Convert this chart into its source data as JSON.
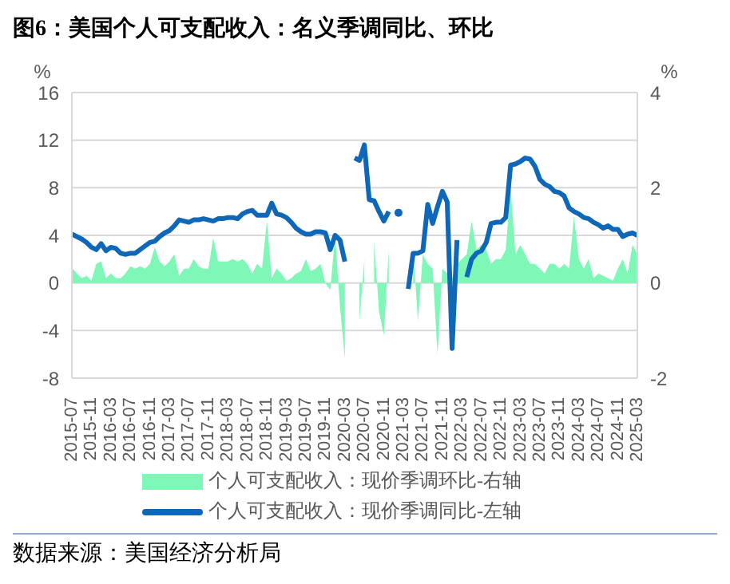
{
  "chart_data": {
    "type": "line",
    "title": "图6：美国个人可支配收入：名义季调同比、环比",
    "ylabel": "%",
    "y2label": "%",
    "categories": [
      "2015-07",
      null,
      null,
      null,
      "2015-11",
      null,
      null,
      null,
      "2016-03",
      null,
      null,
      null,
      "2016-07",
      null,
      null,
      null,
      "2016-11",
      null,
      null,
      null,
      "2017-03",
      null,
      null,
      null,
      "2017-07",
      null,
      null,
      null,
      "2017-11",
      null,
      null,
      null,
      "2018-03",
      null,
      null,
      null,
      "2018-07",
      null,
      null,
      null,
      "2018-11",
      null,
      null,
      null,
      "2019-03",
      null,
      null,
      null,
      "2019-07",
      null,
      null,
      null,
      "2019-11",
      null,
      null,
      null,
      "2020-03",
      null,
      null,
      null,
      "2020-07",
      null,
      null,
      null,
      "2020-11",
      null,
      null,
      null,
      "2021-03",
      null,
      null,
      null,
      "2021-07",
      null,
      null,
      null,
      "2021-11",
      null,
      null,
      null,
      "2022-03",
      null,
      null,
      null,
      "2022-07",
      null,
      null,
      null,
      "2022-11",
      null,
      null,
      null,
      "2023-03",
      null,
      null,
      null,
      "2023-07",
      null,
      null,
      null,
      "2023-11",
      null,
      null,
      null,
      "2024-03",
      null,
      null,
      null,
      "2024-07",
      null,
      null,
      null,
      "2024-11",
      null,
      null,
      null,
      "2025-03"
    ],
    "series": [
      {
        "name": "个人可支配收入：现价季调环比-右轴",
        "type": "area",
        "axis": "y2",
        "color": "#7ff7b6",
        "values": [
          0.32,
          0.2,
          0.1,
          0.15,
          0.05,
          0.4,
          0.45,
          0.1,
          0.2,
          0.1,
          0.1,
          0.2,
          0.35,
          0.3,
          0.35,
          0.3,
          0.4,
          0.75,
          0.45,
          0.35,
          0.45,
          0.6,
          0.15,
          0.3,
          0.3,
          0.5,
          0.35,
          0.3,
          0.3,
          0.95,
          0.45,
          0.45,
          0.45,
          0.5,
          0.45,
          0.5,
          0.4,
          0.2,
          0.4,
          0.3,
          1.3,
          0.1,
          0.3,
          0.2,
          0.05,
          0.1,
          0.2,
          0.25,
          0.5,
          0.25,
          0.3,
          0.4,
          0.0,
          -0.15,
          1.0,
          -0.5,
          -1.6,
          null,
          null,
          -0.8,
          0.5,
          null,
          0.9,
          -0.6,
          -1.1,
          0.7,
          null,
          null,
          null,
          null,
          0.7,
          -0.8,
          0.6,
          0.4,
          0.3,
          -1.5,
          0.3,
          0.2,
          0.1,
          0.4,
          0.5,
          0.6,
          1.3,
          0.7,
          0.8,
          0.7,
          0.4,
          0.5,
          0.5,
          0.7,
          2.0,
          0.6,
          0.8,
          0.6,
          0.4,
          0.4,
          0.3,
          0.2,
          0.4,
          0.4,
          0.3,
          0.4,
          0.3,
          1.4,
          0.5,
          0.3,
          0.5,
          0.1,
          0.2,
          0.15,
          0.1,
          0.05,
          0.3,
          0.5,
          0.2,
          0.8,
          0.6
        ]
      },
      {
        "name": "个人可支配收入：现价季调同比-左轴",
        "axis": "y",
        "color": "#0f67b8",
        "values": [
          4.1,
          3.9,
          3.7,
          3.4,
          3.0,
          2.8,
          3.3,
          2.7,
          3.0,
          2.9,
          2.5,
          2.4,
          2.5,
          2.5,
          2.8,
          3.1,
          3.4,
          3.5,
          3.9,
          4.2,
          4.4,
          4.8,
          5.3,
          5.2,
          5.1,
          5.3,
          5.3,
          5.4,
          5.3,
          5.2,
          5.4,
          5.4,
          5.5,
          5.5,
          5.4,
          5.8,
          6.0,
          6.1,
          5.7,
          5.7,
          5.7,
          6.7,
          5.8,
          5.7,
          5.5,
          5.1,
          4.6,
          4.3,
          4.1,
          4.1,
          4.3,
          4.3,
          4.2,
          2.8,
          4.0,
          3.6,
          1.8,
          null,
          10.5,
          10.3,
          11.6,
          7.0,
          6.9,
          6.0,
          5.2,
          6.0,
          null,
          5.9,
          null,
          -0.5,
          2.5,
          2.5,
          2.7,
          6.6,
          5.0,
          6.4,
          7.7,
          6.8,
          -5.5,
          3.6,
          null,
          0.5,
          2.0,
          2.5,
          2.7,
          3.4,
          5.0,
          5.1,
          5.1,
          5.5,
          9.9,
          10.0,
          10.2,
          10.5,
          10.4,
          9.8,
          8.7,
          8.3,
          8.1,
          7.7,
          7.6,
          7.3,
          6.3,
          6.0,
          5.8,
          5.5,
          5.4,
          5.1,
          4.9,
          4.6,
          4.8,
          4.5,
          4.5,
          3.9,
          4.1,
          4.2,
          4.0
        ]
      }
    ],
    "ylim": [
      -8,
      16
    ],
    "yticks": [
      -8,
      -4,
      0,
      4,
      8,
      12,
      16
    ],
    "y2lim": [
      -2,
      4
    ],
    "y2ticks": [
      -2,
      0,
      2,
      4
    ],
    "grid": "y",
    "legend": "bottom",
    "annotations": [
      "数据来源：美国经济分析局"
    ]
  }
}
